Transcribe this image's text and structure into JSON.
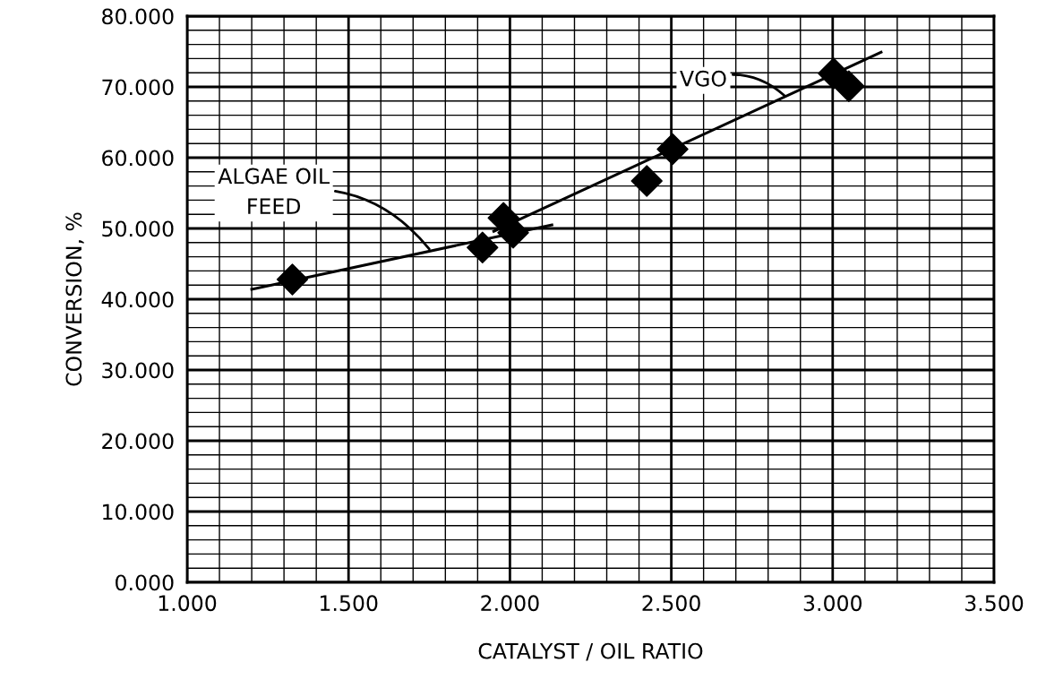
{
  "chart_data": {
    "type": "scatter",
    "xlabel": "CATALYST / OIL RATIO",
    "ylabel": "CONVERSION, %",
    "xlim": [
      1.0,
      3.5
    ],
    "ylim": [
      0,
      80
    ],
    "xticks": [
      {
        "value": 1.0,
        "label": "1.000"
      },
      {
        "value": 1.1,
        "label": null
      },
      {
        "value": 1.2,
        "label": null
      },
      {
        "value": 1.3,
        "label": null
      },
      {
        "value": 1.4,
        "label": null
      },
      {
        "value": 1.5,
        "label": "1.500"
      },
      {
        "value": 1.6,
        "label": null
      },
      {
        "value": 1.7,
        "label": null
      },
      {
        "value": 1.8,
        "label": null
      },
      {
        "value": 1.9,
        "label": null
      },
      {
        "value": 2.0,
        "label": "2.000"
      },
      {
        "value": 2.1,
        "label": null
      },
      {
        "value": 2.2,
        "label": null
      },
      {
        "value": 2.3,
        "label": null
      },
      {
        "value": 2.4,
        "label": null
      },
      {
        "value": 2.5,
        "label": "2.500"
      },
      {
        "value": 2.6,
        "label": null
      },
      {
        "value": 2.7,
        "label": null
      },
      {
        "value": 2.8,
        "label": null
      },
      {
        "value": 2.9,
        "label": null
      },
      {
        "value": 3.0,
        "label": "3.000"
      },
      {
        "value": 3.1,
        "label": null
      },
      {
        "value": 3.2,
        "label": null
      },
      {
        "value": 3.3,
        "label": null
      },
      {
        "value": 3.4,
        "label": null
      },
      {
        "value": 3.5,
        "label": "3.500"
      }
    ],
    "yticks": [
      {
        "value": 0,
        "label": "0.000"
      },
      {
        "value": 2,
        "label": null
      },
      {
        "value": 4,
        "label": null
      },
      {
        "value": 6,
        "label": null
      },
      {
        "value": 8,
        "label": null
      },
      {
        "value": 10,
        "label": "10.000"
      },
      {
        "value": 12,
        "label": null
      },
      {
        "value": 14,
        "label": null
      },
      {
        "value": 16,
        "label": null
      },
      {
        "value": 18,
        "label": null
      },
      {
        "value": 20,
        "label": "20.000"
      },
      {
        "value": 22,
        "label": null
      },
      {
        "value": 24,
        "label": null
      },
      {
        "value": 26,
        "label": null
      },
      {
        "value": 28,
        "label": null
      },
      {
        "value": 30,
        "label": "30.000"
      },
      {
        "value": 32,
        "label": null
      },
      {
        "value": 34,
        "label": null
      },
      {
        "value": 36,
        "label": null
      },
      {
        "value": 38,
        "label": null
      },
      {
        "value": 40,
        "label": "40.000"
      },
      {
        "value": 42,
        "label": null
      },
      {
        "value": 44,
        "label": null
      },
      {
        "value": 46,
        "label": null
      },
      {
        "value": 48,
        "label": null
      },
      {
        "value": 50,
        "label": "50.000"
      },
      {
        "value": 52,
        "label": null
      },
      {
        "value": 54,
        "label": null
      },
      {
        "value": 56,
        "label": null
      },
      {
        "value": 58,
        "label": null
      },
      {
        "value": 60,
        "label": "60.000"
      },
      {
        "value": 62,
        "label": null
      },
      {
        "value": 64,
        "label": null
      },
      {
        "value": 66,
        "label": null
      },
      {
        "value": 68,
        "label": null
      },
      {
        "value": 70,
        "label": "70.000"
      },
      {
        "value": 72,
        "label": null
      },
      {
        "value": 74,
        "label": null
      },
      {
        "value": 76,
        "label": null
      },
      {
        "value": 78,
        "label": null
      },
      {
        "value": 80,
        "label": "80.000"
      }
    ],
    "grid": true,
    "series": [
      {
        "color": "#000000",
        "marker": "diamond",
        "x": [
          1.326,
          1.915,
          1.98,
          2.01
        ],
        "values": [
          42.8,
          47.3,
          51.5,
          49.4
        ]
      },
      {
        "color": "#000000",
        "marker": "diamond",
        "x": [
          2.424,
          2.504,
          3.003,
          3.05
        ],
        "values": [
          56.7,
          61.2,
          71.9,
          70.1
        ]
      },
      {
        "type": "line",
        "color": "#000000",
        "marker": "none",
        "line_style": "solid",
        "x": [
          1.2,
          2.13
        ],
        "values": [
          41.4,
          50.5
        ]
      },
      {
        "type": "line",
        "color": "#000000",
        "marker": "none",
        "line_style": "solid",
        "x": [
          1.95,
          3.15
        ],
        "values": [
          49.6,
          74.9
        ]
      }
    ],
    "annotations": [
      {
        "text": "ALGAE OIL\nFEED",
        "x": 1.75,
        "y": 47.1
      },
      {
        "text": "VGO",
        "x": 2.85,
        "y": 68.8
      }
    ]
  }
}
